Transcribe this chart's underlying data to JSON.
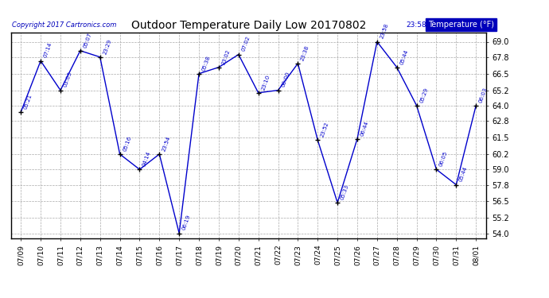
{
  "title": "Outdoor Temperature Daily Low 20170802",
  "copyright": "Copyright 2017 Cartronics.com",
  "legend_label": "Temperature (°F)",
  "x_labels": [
    "07/09",
    "07/10",
    "07/11",
    "07/12",
    "07/13",
    "07/14",
    "07/15",
    "07/16",
    "07/17",
    "07/18",
    "07/19",
    "07/20",
    "07/21",
    "07/22",
    "07/23",
    "07/24",
    "07/25",
    "07/26",
    "07/27",
    "07/28",
    "07/29",
    "07/30",
    "07/31",
    "08/01"
  ],
  "y_values": [
    63.5,
    67.5,
    65.2,
    68.3,
    67.8,
    60.2,
    59.0,
    60.2,
    54.0,
    66.5,
    67.0,
    68.0,
    65.0,
    65.2,
    67.3,
    61.3,
    56.4,
    61.4,
    69.0,
    67.0,
    64.0,
    59.0,
    57.8,
    64.0
  ],
  "point_labels": [
    "05:21",
    "07:14",
    "03:03",
    "05:07",
    "23:29",
    "05:16",
    "04:14",
    "23:54",
    "06:19",
    "05:38",
    "23:02",
    "07:02",
    "23:10",
    "00:00",
    "23:38",
    "23:52",
    "05:33",
    "06:44",
    "23:58",
    "05:44",
    "05:29",
    "06:05",
    "05:44",
    "06:03"
  ],
  "yticks": [
    54.0,
    55.2,
    56.5,
    57.8,
    59.0,
    60.2,
    61.5,
    62.8,
    64.0,
    65.2,
    66.5,
    67.8,
    69.0
  ],
  "ylim_min": 53.6,
  "ylim_max": 69.7,
  "line_color": "#0000cc",
  "marker_color": "#000000",
  "label_color": "#0000cc",
  "bg_color": "#ffffff",
  "grid_color": "#aaaaaa",
  "title_color": "#000000",
  "copyright_color": "#0000bb",
  "legend_bg": "#0000bb",
  "legend_fg": "#ffffff"
}
